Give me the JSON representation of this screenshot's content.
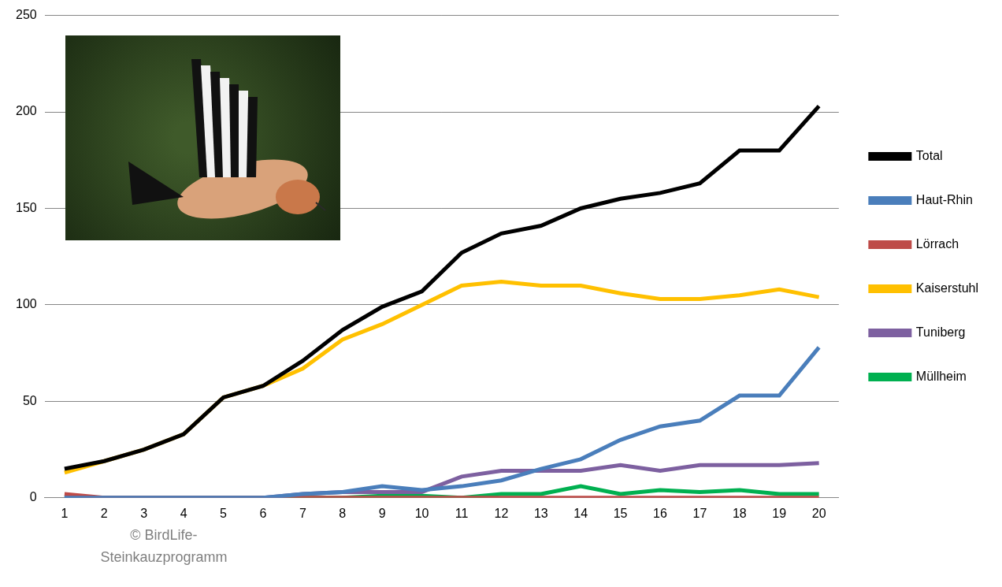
{
  "chart_data": {
    "type": "line",
    "annotation": "© BirdLife-Steinkauzprogramm",
    "categories": [
      "1",
      "2",
      "3",
      "4",
      "5",
      "6",
      "7",
      "8",
      "9",
      "10",
      "11",
      "12",
      "13",
      "14",
      "15",
      "16",
      "17",
      "18",
      "19",
      "20"
    ],
    "series": [
      {
        "name": "Haut-Rhin",
        "color": "#4a7ebb",
        "values": [
          0,
          0,
          0,
          0,
          0,
          0,
          2,
          3,
          6,
          4,
          6,
          9,
          15,
          20,
          30,
          37,
          40,
          53,
          53,
          78
        ]
      },
      {
        "name": "Lörrach",
        "color": "#be4b48",
        "values": [
          2,
          0,
          0,
          0,
          0,
          0,
          0,
          0,
          0,
          0,
          0,
          0,
          0,
          0,
          0,
          0,
          0,
          0,
          0,
          0
        ]
      },
      {
        "name": "Kaiserstuhl",
        "color": "#ffc000",
        "values": [
          13,
          19,
          25,
          33,
          52,
          58,
          67,
          82,
          90,
          100,
          110,
          112,
          110,
          110,
          106,
          103,
          103,
          105,
          108,
          104
        ]
      },
      {
        "name": "Tuniberg",
        "color": "#7d60a0",
        "values": [
          0,
          0,
          0,
          0,
          0,
          0,
          2,
          3,
          3,
          3,
          11,
          14,
          14,
          14,
          17,
          14,
          17,
          17,
          17,
          18
        ]
      },
      {
        "name": "Müllheim",
        "color": "#00b050",
        "values": [
          0,
          0,
          0,
          0,
          0,
          0,
          0,
          0,
          1,
          1,
          0,
          2,
          2,
          6,
          2,
          4,
          3,
          4,
          2,
          2
        ]
      },
      {
        "name": "Total",
        "color": "#000000",
        "values": [
          15,
          19,
          25,
          33,
          52,
          58,
          71,
          87,
          99,
          107,
          127,
          137,
          141,
          150,
          155,
          158,
          163,
          180,
          180,
          203
        ]
      }
    ],
    "ylim": [
      0,
      250
    ],
    "yticks": [
      0,
      50,
      100,
      150,
      200,
      250
    ],
    "grid": true,
    "legend": "right"
  }
}
